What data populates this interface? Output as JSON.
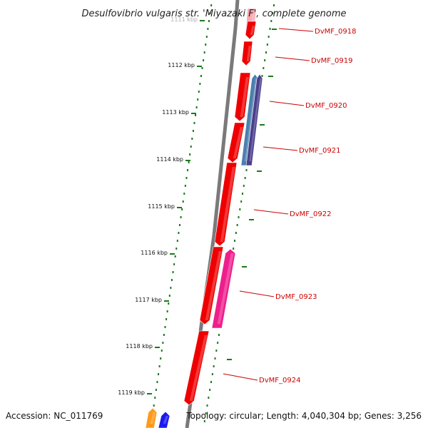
{
  "title": "Desulfovibrio vulgaris str. 'Miyazaki F', complete genome",
  "footer": {
    "accession": "Accession: NC_011769",
    "topology": "Topology: circular; Length: 4,040,304 bp; Genes: 3,256"
  },
  "axis": {
    "unit": "kbp",
    "ticks": [
      "1111 kbp",
      "1112 kbp",
      "1113 kbp",
      "1114 kbp",
      "1115 kbp",
      "1116 kbp",
      "1117 kbp",
      "1118 kbp",
      "1119 kbp"
    ]
  },
  "genes": [
    {
      "id": "DvMF_0918",
      "label": "DvMF_0918"
    },
    {
      "id": "DvMF_0919",
      "label": "DvMF_0919"
    },
    {
      "id": "DvMF_0920",
      "label": "DvMF_0920"
    },
    {
      "id": "DvMF_0921",
      "label": "DvMF_0921"
    },
    {
      "id": "DvMF_0922",
      "label": "DvMF_0922"
    },
    {
      "id": "DvMF_0923",
      "label": "DvMF_0923"
    },
    {
      "id": "DvMF_0924",
      "label": "DvMF_0924"
    }
  ],
  "colors": {
    "backbone": "#7a7a7a",
    "tick_ring": "#1a7a1a",
    "gene_red": "#ee0000",
    "gene_magenta": "#ee1f8c",
    "gene_steelblue": "#4b7fae",
    "gene_indigo": "#4a3f8c",
    "gene_orange": "#ff9a1a",
    "gene_blue": "#1a1aee",
    "label_red": "#cc0000"
  }
}
